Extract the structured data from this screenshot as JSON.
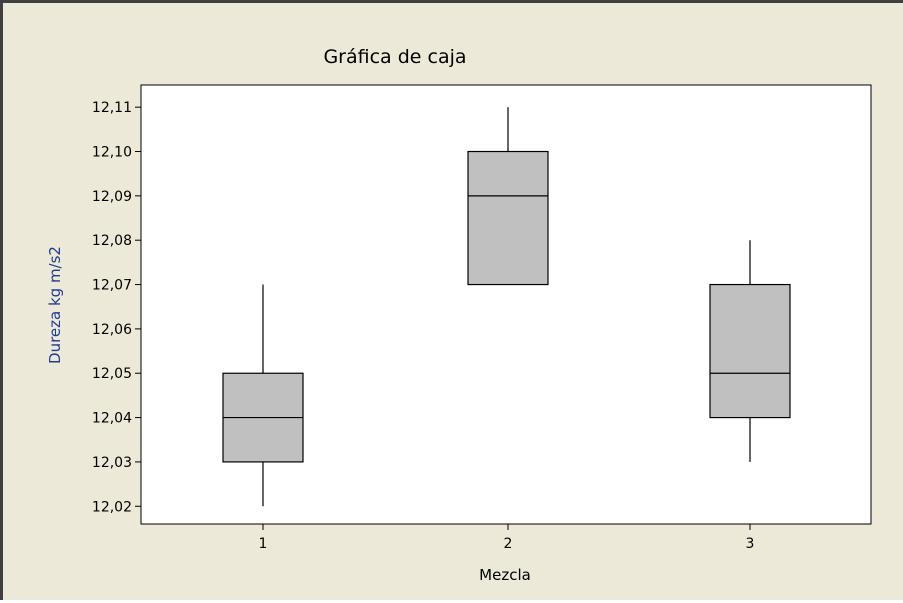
{
  "chart_data": {
    "type": "box",
    "title": "Gráfica de caja",
    "xlabel": "Mezcla",
    "ylabel": "Dureza kg m/s2",
    "categories": [
      "1",
      "2",
      "3"
    ],
    "boxes": [
      {
        "category": "1",
        "min": 12.02,
        "q1": 12.03,
        "median": 12.04,
        "q3": 12.05,
        "max": 12.07
      },
      {
        "category": "2",
        "min": 12.07,
        "q1": 12.07,
        "median": 12.09,
        "q3": 12.1,
        "max": 12.11
      },
      {
        "category": "3",
        "min": 12.03,
        "q1": 12.04,
        "median": 12.05,
        "q3": 12.07,
        "max": 12.08
      }
    ],
    "yticks": [
      "12,02",
      "12,03",
      "12,04",
      "12,05",
      "12,06",
      "12,07",
      "12,08",
      "12,09",
      "12,10",
      "12,11"
    ],
    "ytick_values": [
      12.02,
      12.03,
      12.04,
      12.05,
      12.06,
      12.07,
      12.08,
      12.09,
      12.1,
      12.11
    ],
    "ylim": [
      12.016,
      12.115
    ],
    "grid": false,
    "colors": {
      "box_fill": "#c0c0c0",
      "outline": "#000000",
      "background": "#ece9d8",
      "plot_area": "#ffffff",
      "ylabel": "#1f3a93"
    }
  }
}
